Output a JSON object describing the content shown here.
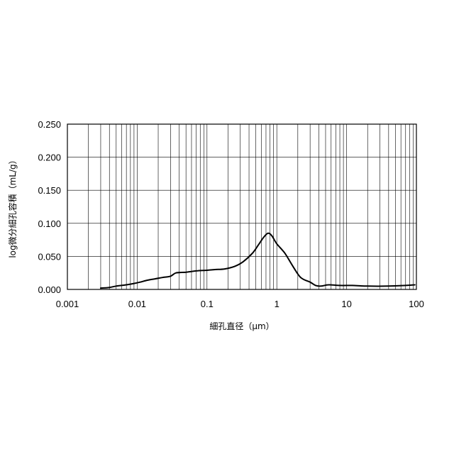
{
  "chart_data": {
    "type": "line",
    "title": "",
    "xlabel": "細孔直径（μm）",
    "ylabel": "log微分細孔容積（mL/g）",
    "x_scale": "log",
    "xlim": [
      0.001,
      100
    ],
    "ylim": [
      0,
      0.25
    ],
    "grid": true,
    "legend": "none",
    "x_ticks": [
      "0.001",
      "0.01",
      "0.1",
      "1",
      "10",
      "100"
    ],
    "y_ticks": [
      "0.000",
      "0.050",
      "0.100",
      "0.150",
      "0.200",
      "0.250"
    ],
    "series": [
      {
        "color": "#000000",
        "points": [
          [
            0.003,
            0.002
          ],
          [
            0.004,
            0.003
          ],
          [
            0.005,
            0.005
          ],
          [
            0.007,
            0.007
          ],
          [
            0.009,
            0.009
          ],
          [
            0.011,
            0.011
          ],
          [
            0.014,
            0.014
          ],
          [
            0.018,
            0.016
          ],
          [
            0.023,
            0.018
          ],
          [
            0.03,
            0.02
          ],
          [
            0.036,
            0.025
          ],
          [
            0.05,
            0.026
          ],
          [
            0.07,
            0.028
          ],
          [
            0.1,
            0.029
          ],
          [
            0.13,
            0.03
          ],
          [
            0.18,
            0.031
          ],
          [
            0.25,
            0.035
          ],
          [
            0.33,
            0.042
          ],
          [
            0.45,
            0.055
          ],
          [
            0.55,
            0.068
          ],
          [
            0.65,
            0.079
          ],
          [
            0.75,
            0.085
          ],
          [
            0.85,
            0.081
          ],
          [
            1.0,
            0.069
          ],
          [
            1.3,
            0.055
          ],
          [
            1.7,
            0.035
          ],
          [
            2.2,
            0.018
          ],
          [
            3.0,
            0.011
          ],
          [
            3.6,
            0.006
          ],
          [
            4.3,
            0.005
          ],
          [
            5.5,
            0.007
          ],
          [
            8,
            0.006
          ],
          [
            12,
            0.006
          ],
          [
            20,
            0.005
          ],
          [
            40,
            0.005
          ],
          [
            70,
            0.006
          ],
          [
            95,
            0.007
          ]
        ]
      }
    ]
  }
}
